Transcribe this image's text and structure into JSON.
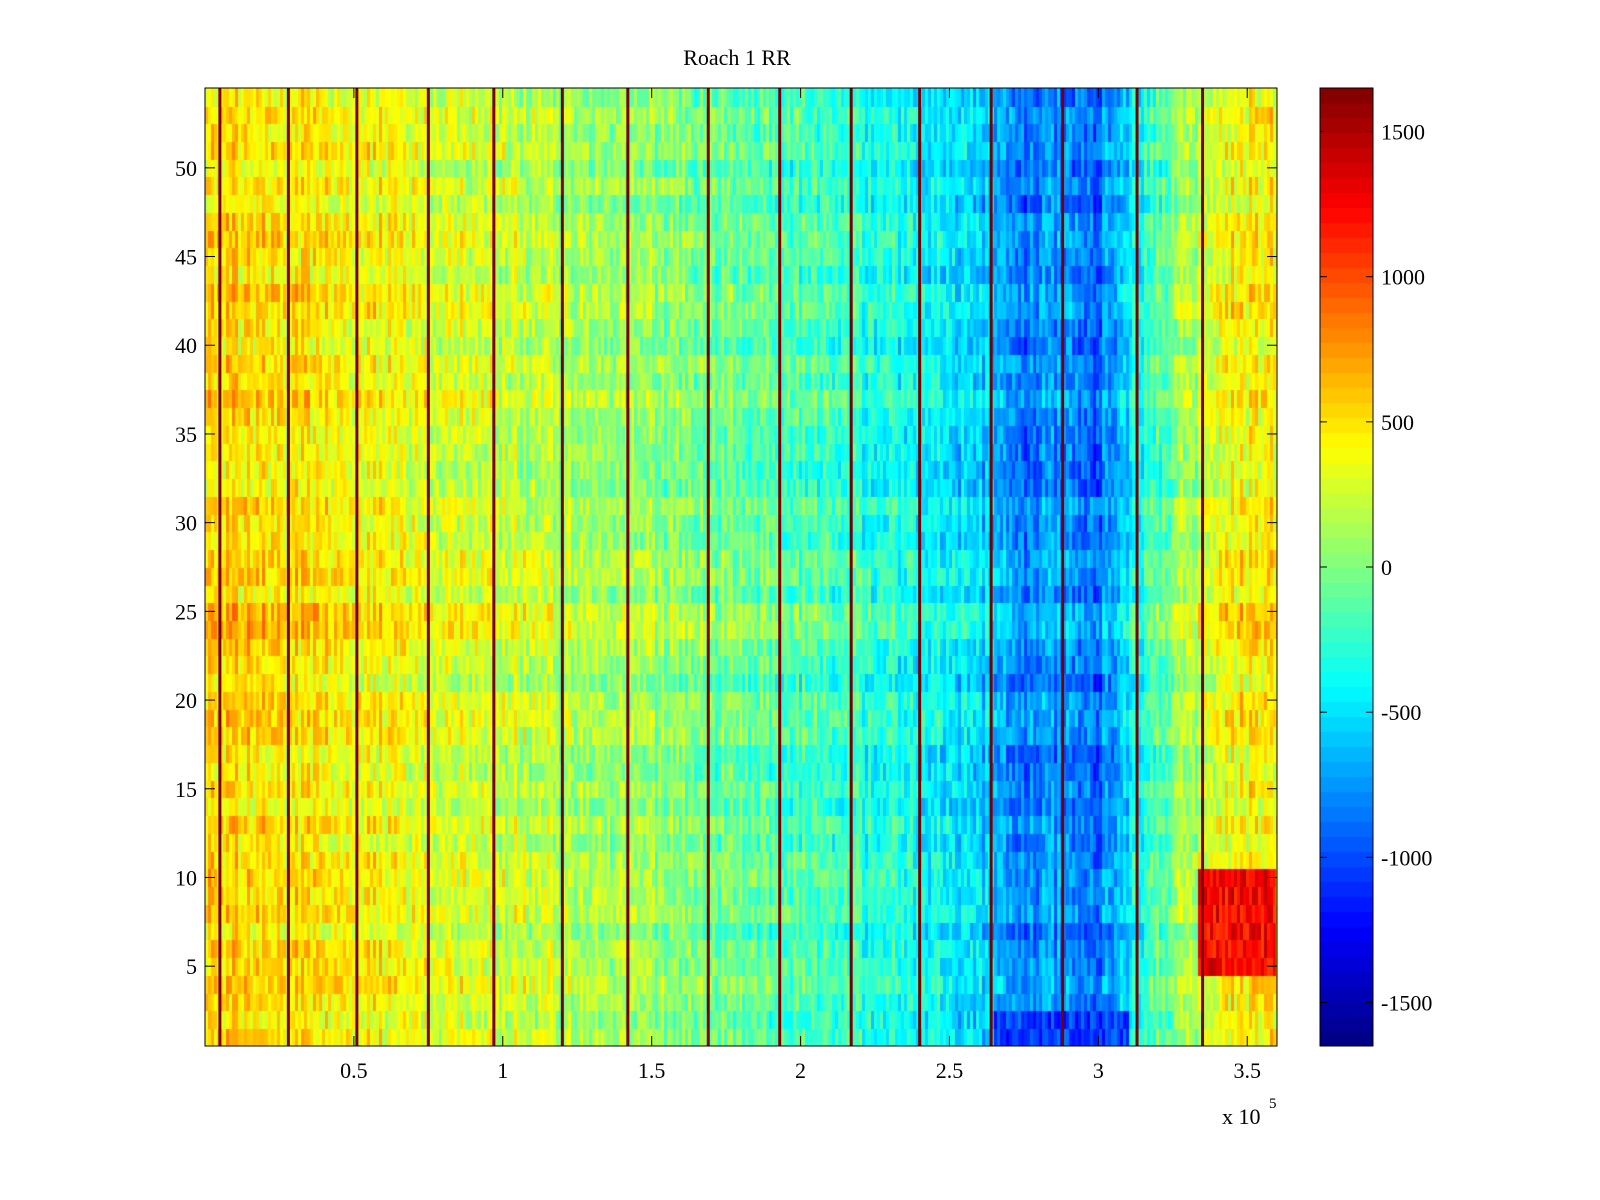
{
  "chart_data": {
    "type": "heatmap",
    "title": "Roach 1 RR",
    "xlabel": "",
    "ylabel": "",
    "x_multiplier_label": "x 10",
    "x_multiplier_exponent": "5",
    "xlim": [
      0,
      3.6
    ],
    "ylim": [
      0.5,
      54.5
    ],
    "x_ticks": [
      0.5,
      1,
      1.5,
      2,
      2.5,
      3,
      3.5
    ],
    "x_tick_labels": [
      "0.5",
      "1",
      "1.5",
      "2",
      "2.5",
      "3",
      "3.5"
    ],
    "y_ticks": [
      5,
      10,
      15,
      20,
      25,
      30,
      35,
      40,
      45,
      50
    ],
    "y_tick_labels": [
      "5",
      "10",
      "15",
      "20",
      "25",
      "30",
      "35",
      "40",
      "45",
      "50"
    ],
    "rows": 54,
    "colormap": "jet",
    "color_range": [
      -1650,
      1650
    ],
    "colorbar_ticks": [
      1500,
      1000,
      500,
      0,
      -500,
      -1000,
      -1500
    ],
    "colorbar_tick_labels": [
      "1500",
      "1000",
      "500",
      "0",
      "-500",
      "-1000",
      "-1500"
    ],
    "vertical_stripe_positions": [
      0.05,
      0.28,
      0.51,
      0.75,
      0.97,
      1.2,
      1.42,
      1.69,
      1.93,
      2.17,
      2.4,
      2.64,
      2.88,
      3.13,
      3.35
    ],
    "column_profile": [
      {
        "x": 0.0,
        "value": 500
      },
      {
        "x": 0.3,
        "value": 470
      },
      {
        "x": 0.6,
        "value": 380
      },
      {
        "x": 0.9,
        "value": 280
      },
      {
        "x": 1.2,
        "value": 150
      },
      {
        "x": 1.5,
        "value": 50
      },
      {
        "x": 1.8,
        "value": -80
      },
      {
        "x": 2.1,
        "value": -220
      },
      {
        "x": 2.4,
        "value": -380
      },
      {
        "x": 2.6,
        "value": -550
      },
      {
        "x": 2.75,
        "value": -850
      },
      {
        "x": 2.9,
        "value": -750
      },
      {
        "x": 3.0,
        "value": -900
      },
      {
        "x": 3.15,
        "value": -300
      },
      {
        "x": 3.3,
        "value": 100
      },
      {
        "x": 3.45,
        "value": 380
      },
      {
        "x": 3.6,
        "value": 480
      }
    ],
    "features": [
      {
        "label": "horizontal band",
        "y": [
          23.5,
          25.5
        ],
        "value_shift": 220
      },
      {
        "label": "high region",
        "x": [
          3.33,
          3.6
        ],
        "y": [
          4.5,
          10.5
        ],
        "value": 1250
      },
      {
        "label": "low region",
        "x": [
          2.65,
          3.1
        ],
        "y": [
          0.5,
          2.5
        ],
        "value": -1050
      }
    ],
    "grid": false,
    "colorbar": "right"
  }
}
